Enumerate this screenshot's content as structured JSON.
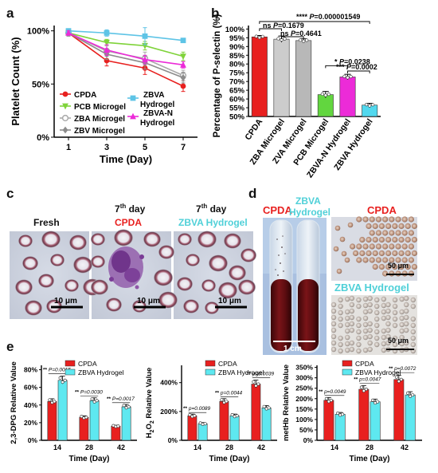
{
  "panels": {
    "a": "a",
    "b": "b",
    "c": "c",
    "d": "d",
    "e": "e"
  },
  "colors": {
    "cpda": "#e8201f",
    "pcb": "#7fd33a",
    "zba": "#aaaaaa",
    "zbv": "#8c8c8c",
    "zbva": "#5ec4e6",
    "zbvan": "#ec2bd8",
    "cyan_text": "#4fd0d8"
  },
  "chart_data": [
    {
      "id": "a",
      "type": "line",
      "x": [
        1,
        3,
        5,
        7
      ],
      "xlabel": "Time (Day)",
      "ylabel": "Platelet Count (%)",
      "xticks": [
        "1",
        "3",
        "5",
        "7"
      ],
      "yticks": [
        "0%",
        "50%",
        "100%"
      ],
      "ylim": [
        0,
        105
      ],
      "legend": "bottom",
      "series": [
        {
          "name": "CPDA",
          "color": "#e8201f",
          "marker": "circle",
          "values": [
            98,
            72,
            65,
            48
          ],
          "err": [
            2,
            5,
            6,
            5
          ]
        },
        {
          "name": "PCB Microgel",
          "color": "#7fd33a",
          "marker": "triangle-down",
          "values": [
            98,
            89,
            86,
            76
          ],
          "err": [
            2,
            3,
            4,
            4
          ]
        },
        {
          "name": "ZBA Microgel",
          "color": "#aaaaaa",
          "marker": "open-circle",
          "values": [
            98,
            81,
            74,
            58
          ],
          "err": [
            2,
            5,
            6,
            5
          ]
        },
        {
          "name": "ZBV Microgel",
          "color": "#8c8c8c",
          "marker": "diamond",
          "values": [
            98,
            78,
            70,
            56
          ],
          "err": [
            3,
            5,
            6,
            5
          ]
        },
        {
          "name": "ZBVA Hydrogel",
          "color": "#5ec4e6",
          "marker": "square",
          "values": [
            100,
            98,
            95,
            91
          ],
          "err": [
            2,
            3,
            8,
            2
          ]
        },
        {
          "name": "ZBVA-N Hydrogel",
          "color": "#ec2bd8",
          "marker": "triangle-up",
          "values": [
            98,
            82,
            73,
            68
          ],
          "err": [
            2,
            5,
            4,
            3
          ]
        }
      ]
    },
    {
      "id": "b",
      "type": "bar",
      "ylabel": "Percentage of P-selectin (%)",
      "yticks": [
        "50%",
        "55%",
        "60%",
        "65%",
        "70%",
        "75%",
        "80%",
        "85%",
        "90%",
        "95%",
        "100%"
      ],
      "ylim": [
        50,
        102
      ],
      "categories": [
        "CPDA",
        "ZBA Microgel",
        "ZVA Microgel",
        "PCB Microgel",
        "ZBVA-N Hydrogel",
        "ZBVA Hydrogel"
      ],
      "values": [
        95.5,
        94.2,
        93.4,
        62.5,
        72.6,
        56.5
      ],
      "err": [
        0.8,
        1.8,
        1.0,
        1.8,
        1.5,
        1.0
      ],
      "colors": [
        "#e8201f",
        "#cccccc",
        "#b8b8b8",
        "#62d63f",
        "#ec2bd8",
        "#52d8ee"
      ],
      "annotations": [
        {
          "label": "**** P=0.000001549"
        },
        {
          "label": "ns P=0.1679"
        },
        {
          "label": "ns P=0.4641"
        },
        {
          "label": "* P=0.0238"
        },
        {
          "label": "*** P=0.0002"
        }
      ]
    },
    {
      "id": "e1",
      "type": "bar",
      "ylabel": "2,3-DPG Relative Value",
      "xlabel": "Time (Day)",
      "categories": [
        "14",
        "28",
        "42"
      ],
      "yticks": [
        "0%",
        "20%",
        "40%",
        "60%",
        "80%"
      ],
      "ylim": [
        0,
        85
      ],
      "legend": "top",
      "series": [
        {
          "name": "CPDA",
          "color": "#e8201f",
          "values": [
            44,
            26,
            16
          ]
        },
        {
          "name": "ZBVA Hydrogel",
          "color": "#5ee8f0",
          "values": [
            68,
            45,
            38
          ]
        }
      ],
      "annotations": [
        "** P=0.0015",
        "** P=0.0030",
        "** P=0.0017"
      ]
    },
    {
      "id": "e2",
      "type": "bar",
      "ylabel": "H2O2 Relative Value",
      "xlabel": "Time (Day)",
      "categories": [
        "14",
        "28",
        "42"
      ],
      "yticks": [
        "0%",
        "200%",
        "400%"
      ],
      "ylim": [
        0,
        520
      ],
      "legend": "top",
      "series": [
        {
          "name": "CPDA",
          "color": "#e8201f",
          "values": [
            170,
            270,
            390
          ]
        },
        {
          "name": "ZBVA Hydrogel",
          "color": "#5ee8f0",
          "values": [
            115,
            170,
            225
          ]
        }
      ],
      "annotations": [
        "** p=0.0089",
        "** p=0.0044",
        "** p=0.0039"
      ]
    },
    {
      "id": "e3",
      "type": "bar",
      "ylabel": "metHb Relative Value",
      "xlabel": "Time (Day)",
      "categories": [
        "14",
        "28",
        "42"
      ],
      "yticks": [
        "0%",
        "50%",
        "100%",
        "150%",
        "200%",
        "250%",
        "300%",
        "350%"
      ],
      "ylim": [
        0,
        360
      ],
      "legend": "top",
      "series": [
        {
          "name": "CPDA",
          "color": "#e8201f",
          "values": [
            192,
            245,
            292
          ]
        },
        {
          "name": "ZBVA Hydrogel",
          "color": "#5ee8f0",
          "values": [
            125,
            185,
            218
          ]
        }
      ],
      "annotations": [
        "** p=0.0049",
        "** p=0.0047",
        "** p=0.0072"
      ]
    }
  ],
  "panel_c": {
    "fresh": "Fresh",
    "day_sup": "th",
    "day_pre": "7",
    "day_post": " day",
    "cpda": "CPDA",
    "zbva": "ZBVA Hydrogel",
    "scale": "10 μm"
  },
  "panel_d": {
    "cpda": "CPDA",
    "zbva_line1": "ZBVA",
    "zbva_line2": "Hydrogel",
    "scale_tube": "1 cm",
    "micro_cpda": "CPDA",
    "micro_zbva": "ZBVA Hydrogel",
    "scale_micro": "50 μm"
  }
}
